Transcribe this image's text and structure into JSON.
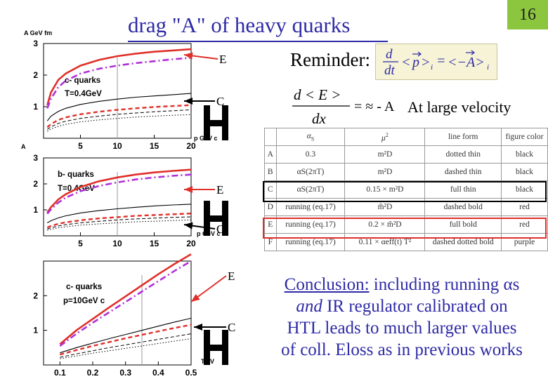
{
  "slide": {
    "title": "drag \"A\" of heavy quarks",
    "page_number": "16",
    "reminder_label": "Reminder:",
    "reminder_formula": {
      "lhs": "d/dt <p>ᵢ",
      "rhs": "<−A>ᵢ"
    },
    "eloss_formula": {
      "numer": "d < E >",
      "denom": "dx",
      "rhs": "= ≈ - A"
    },
    "large_velocity": "At large velocity",
    "accent_color": "#2e2aa6",
    "page_badge_color": "#8cc63f"
  },
  "arrows": [
    {
      "label": "E",
      "panel": 0,
      "color": "#e0302a"
    },
    {
      "label": "C",
      "panel": 0,
      "color": "#000000"
    },
    {
      "label": "E",
      "panel": 1,
      "color": "#e0302a"
    },
    {
      "label": "C",
      "panel": 1,
      "color": "#000000"
    },
    {
      "label": "E",
      "panel": 2,
      "color": "#e0302a"
    },
    {
      "label": "C",
      "panel": 2,
      "color": "#000000"
    }
  ],
  "table": {
    "headers": [
      "",
      "αS",
      "μ²",
      "line form",
      "figure color"
    ],
    "rows": [
      {
        "id": "A",
        "alpha": "0.3",
        "mu2": "m²D",
        "line": "dotted thin",
        "color": "black"
      },
      {
        "id": "B",
        "alpha": "αS(2πT)",
        "mu2": "m²D",
        "line": "dashed thin",
        "color": "black"
      },
      {
        "id": "C",
        "alpha": "αS(2πT)",
        "mu2": "0.15 × m²D",
        "line": "full thin",
        "color": "black"
      },
      {
        "id": "D",
        "alpha": "running (eq.17)",
        "mu2": "m̃²D",
        "line": "dashed bold",
        "color": "red"
      },
      {
        "id": "E",
        "alpha": "running (eq.17)",
        "mu2": "0.2 × m̃²D",
        "line": "full bold",
        "color": "red"
      },
      {
        "id": "F",
        "alpha": "running (eq.17)",
        "mu2": "0.11 × αeff(t) T²",
        "line": "dashed dotted bold",
        "color": "purple"
      }
    ]
  },
  "conclusion": {
    "prefix": "Conclusion:",
    "line1": " including running αs",
    "line2_italic": "and",
    "line2": " IR regulator calibrated on",
    "line3": "HTL leads to much larger values",
    "line4": "of coll. Eloss as in previous works"
  },
  "chart_data": [
    {
      "type": "line",
      "ylabel": "A  GeV  fm",
      "xlabel": "p  GeV c",
      "xlim": [
        0,
        20
      ],
      "ylim": [
        0,
        3
      ],
      "xticks": [
        "5",
        "10",
        "15",
        "20"
      ],
      "yticks": [
        "1",
        "2",
        "3"
      ],
      "annotations": [
        "c- quarks",
        "T=0.4GeV"
      ],
      "series": [
        {
          "style": "red-full-bold",
          "x": [
            0.5,
            1,
            2,
            3,
            5,
            7.5,
            10,
            12.5,
            15,
            17.5,
            20
          ],
          "y": [
            1.05,
            1.45,
            1.85,
            2.05,
            2.3,
            2.48,
            2.6,
            2.68,
            2.74,
            2.78,
            2.82
          ]
        },
        {
          "style": "purple-dashdot-bold",
          "x": [
            0.5,
            1,
            2,
            3,
            5,
            7.5,
            10,
            12.5,
            15,
            17.5,
            20
          ],
          "y": [
            0.95,
            1.25,
            1.62,
            1.82,
            2.05,
            2.2,
            2.3,
            2.38,
            2.44,
            2.5,
            2.55
          ]
        },
        {
          "style": "black-full-thin",
          "x": [
            0.5,
            1,
            2,
            3,
            5,
            7.5,
            10,
            12.5,
            15,
            17.5,
            20
          ],
          "y": [
            0.55,
            0.7,
            0.85,
            0.95,
            1.07,
            1.17,
            1.24,
            1.3,
            1.34,
            1.38,
            1.42
          ]
        },
        {
          "style": "red-dashed-bold",
          "x": [
            0.5,
            1,
            2,
            3,
            5,
            7.5,
            10,
            12.5,
            15,
            17.5,
            20
          ],
          "y": [
            0.35,
            0.45,
            0.58,
            0.66,
            0.76,
            0.84,
            0.9,
            0.95,
            0.99,
            1.02,
            1.05
          ]
        },
        {
          "style": "black-dashed-thin",
          "x": [
            0.5,
            1,
            2,
            3,
            5,
            7.5,
            10,
            12.5,
            15,
            17.5,
            20
          ],
          "y": [
            0.28,
            0.36,
            0.47,
            0.54,
            0.63,
            0.7,
            0.76,
            0.8,
            0.84,
            0.87,
            0.9
          ]
        },
        {
          "style": "black-dotted-thin",
          "x": [
            0.5,
            1,
            2,
            3,
            5,
            7.5,
            10,
            12.5,
            15,
            17.5,
            20
          ],
          "y": [
            0.22,
            0.29,
            0.38,
            0.44,
            0.52,
            0.58,
            0.63,
            0.67,
            0.7,
            0.73,
            0.75
          ]
        }
      ]
    },
    {
      "type": "line",
      "ylabel": "A",
      "xlabel": "p  GeV c",
      "xlim": [
        0,
        20
      ],
      "ylim": [
        0,
        3
      ],
      "xticks": [
        "5",
        "10",
        "15",
        "20"
      ],
      "yticks": [
        "1",
        "2",
        "3"
      ],
      "annotations": [
        "b- quarks",
        "T=0.4GeV"
      ],
      "series": [
        {
          "style": "red-full-bold",
          "x": [
            0.5,
            1,
            2,
            3,
            5,
            7.5,
            10,
            12.5,
            15,
            17.5,
            20
          ],
          "y": [
            0.9,
            1.1,
            1.4,
            1.6,
            1.88,
            2.1,
            2.25,
            2.36,
            2.44,
            2.5,
            2.55
          ]
        },
        {
          "style": "purple-dashdot-bold",
          "x": [
            0.5,
            1,
            2,
            3,
            5,
            7.5,
            10,
            12.5,
            15,
            17.5,
            20
          ],
          "y": [
            0.85,
            1.02,
            1.28,
            1.47,
            1.72,
            1.92,
            2.06,
            2.17,
            2.25,
            2.31,
            2.36
          ]
        },
        {
          "style": "black-full-thin",
          "x": [
            0.5,
            1,
            2,
            3,
            5,
            7.5,
            10,
            12.5,
            15,
            17.5,
            20
          ],
          "y": [
            0.5,
            0.58,
            0.69,
            0.77,
            0.88,
            0.97,
            1.04,
            1.1,
            1.15,
            1.19,
            1.22
          ]
        },
        {
          "style": "red-dashed-bold",
          "x": [
            0.5,
            1,
            2,
            3,
            5,
            7.5,
            10,
            12.5,
            15,
            17.5,
            20
          ],
          "y": [
            0.32,
            0.38,
            0.46,
            0.52,
            0.6,
            0.67,
            0.72,
            0.77,
            0.8,
            0.83,
            0.86
          ]
        },
        {
          "style": "black-dashed-thin",
          "x": [
            0.5,
            1,
            2,
            3,
            5,
            7.5,
            10,
            12.5,
            15,
            17.5,
            20
          ],
          "y": [
            0.26,
            0.31,
            0.38,
            0.43,
            0.5,
            0.56,
            0.61,
            0.65,
            0.68,
            0.71,
            0.73
          ]
        },
        {
          "style": "black-dotted-thin",
          "x": [
            0.5,
            1,
            2,
            3,
            5,
            7.5,
            10,
            12.5,
            15,
            17.5,
            20
          ],
          "y": [
            0.21,
            0.25,
            0.31,
            0.35,
            0.41,
            0.46,
            0.5,
            0.54,
            0.56,
            0.59,
            0.61
          ]
        }
      ]
    },
    {
      "type": "line",
      "ylabel": "",
      "xlabel": "T  eV",
      "xlim": [
        0.05,
        0.5
      ],
      "ylim": [
        0,
        3
      ],
      "xticks": [
        "0.1",
        "0.2",
        "0.3",
        "0.4",
        "0.5"
      ],
      "yticks": [
        "1",
        "2"
      ],
      "annotations": [
        "c- quarks",
        "p=10GeV c"
      ],
      "series": [
        {
          "style": "red-full-bold",
          "x": [
            0.1,
            0.15,
            0.2,
            0.25,
            0.3,
            0.35,
            0.4,
            0.45,
            0.5
          ],
          "y": [
            0.6,
            1.0,
            1.33,
            1.66,
            1.98,
            2.3,
            2.62,
            2.92,
            3.2
          ]
        },
        {
          "style": "purple-dashdot-bold",
          "x": [
            0.1,
            0.15,
            0.2,
            0.25,
            0.3,
            0.35,
            0.4,
            0.45,
            0.5
          ],
          "y": [
            0.55,
            0.9,
            1.22,
            1.52,
            1.82,
            2.12,
            2.42,
            2.72,
            3.0
          ]
        },
        {
          "style": "black-full-thin",
          "x": [
            0.1,
            0.15,
            0.2,
            0.25,
            0.3,
            0.35,
            0.4,
            0.45,
            0.5
          ],
          "y": [
            0.35,
            0.5,
            0.63,
            0.76,
            0.88,
            1.0,
            1.12,
            1.24,
            1.35
          ]
        },
        {
          "style": "red-dashed-bold",
          "x": [
            0.1,
            0.15,
            0.2,
            0.25,
            0.3,
            0.35,
            0.4,
            0.45,
            0.5
          ],
          "y": [
            0.3,
            0.43,
            0.55,
            0.66,
            0.77,
            0.87,
            0.97,
            1.07,
            1.16
          ]
        },
        {
          "style": "black-dashed-thin",
          "x": [
            0.1,
            0.15,
            0.2,
            0.25,
            0.3,
            0.35,
            0.4,
            0.45,
            0.5
          ],
          "y": [
            0.22,
            0.32,
            0.41,
            0.5,
            0.58,
            0.66,
            0.74,
            0.82,
            0.9
          ]
        },
        {
          "style": "black-dotted-thin",
          "x": [
            0.1,
            0.15,
            0.2,
            0.25,
            0.3,
            0.35,
            0.4,
            0.45,
            0.5
          ],
          "y": [
            0.18,
            0.26,
            0.34,
            0.41,
            0.48,
            0.55,
            0.62,
            0.69,
            0.76
          ]
        }
      ]
    }
  ]
}
